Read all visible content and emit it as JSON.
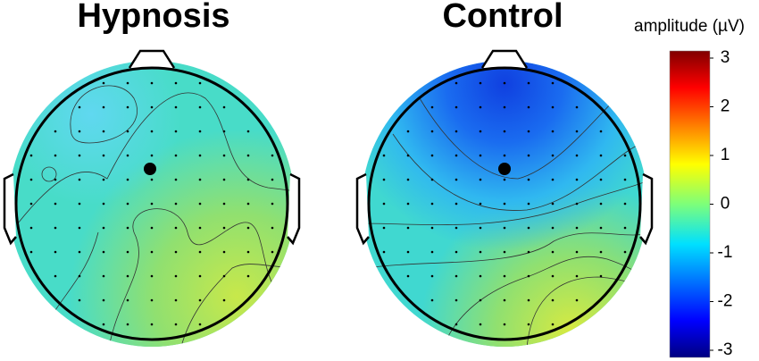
{
  "chart_data": {
    "type": "topomap",
    "panels": [
      {
        "title": "Hypnosis"
      },
      {
        "title": "Control"
      }
    ],
    "colorbar": {
      "label": "amplitude (µV)",
      "lim": [
        -3,
        3
      ],
      "ticks": [
        3,
        2,
        1,
        0,
        -1,
        -2,
        -3
      ]
    }
  }
}
